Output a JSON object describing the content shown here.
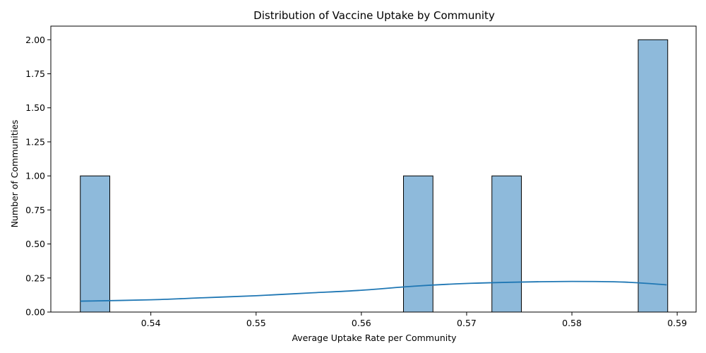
{
  "chart_data": {
    "type": "bar",
    "title": "Distribution of Vaccine Uptake by Community",
    "xlabel": "Average Uptake Rate per Community",
    "ylabel": "Number of Communities",
    "xlim": [
      0.5305,
      0.5918
    ],
    "ylim": [
      0,
      2.1
    ],
    "x_ticks": [
      0.54,
      0.55,
      0.56,
      0.57,
      0.58,
      0.59
    ],
    "x_tick_labels": [
      "0.54",
      "0.55",
      "0.56",
      "0.57",
      "0.58",
      "0.59"
    ],
    "y_ticks": [
      0,
      0.25,
      0.5,
      0.75,
      1.0,
      1.25,
      1.5,
      1.75,
      2.0
    ],
    "y_tick_labels": [
      "0.00",
      "0.25",
      "0.50",
      "0.75",
      "1.00",
      "1.25",
      "1.50",
      "1.75",
      "2.00"
    ],
    "bars": [
      {
        "x0": 0.5333,
        "x1": 0.5361,
        "count": 1
      },
      {
        "x0": 0.564,
        "x1": 0.5668,
        "count": 1
      },
      {
        "x0": 0.5724,
        "x1": 0.5752,
        "count": 1
      },
      {
        "x0": 0.5863,
        "x1": 0.5891,
        "count": 2
      }
    ],
    "kde": {
      "x": [
        0.5333,
        0.54,
        0.545,
        0.55,
        0.555,
        0.56,
        0.565,
        0.57,
        0.575,
        0.58,
        0.585,
        0.589
      ],
      "y": [
        0.08,
        0.09,
        0.105,
        0.12,
        0.14,
        0.16,
        0.19,
        0.21,
        0.22,
        0.225,
        0.22,
        0.2
      ]
    },
    "grid": false,
    "bar_color": "#8ebadb",
    "bar_edge_color": "#000000",
    "line_color": "#1f77b4"
  }
}
